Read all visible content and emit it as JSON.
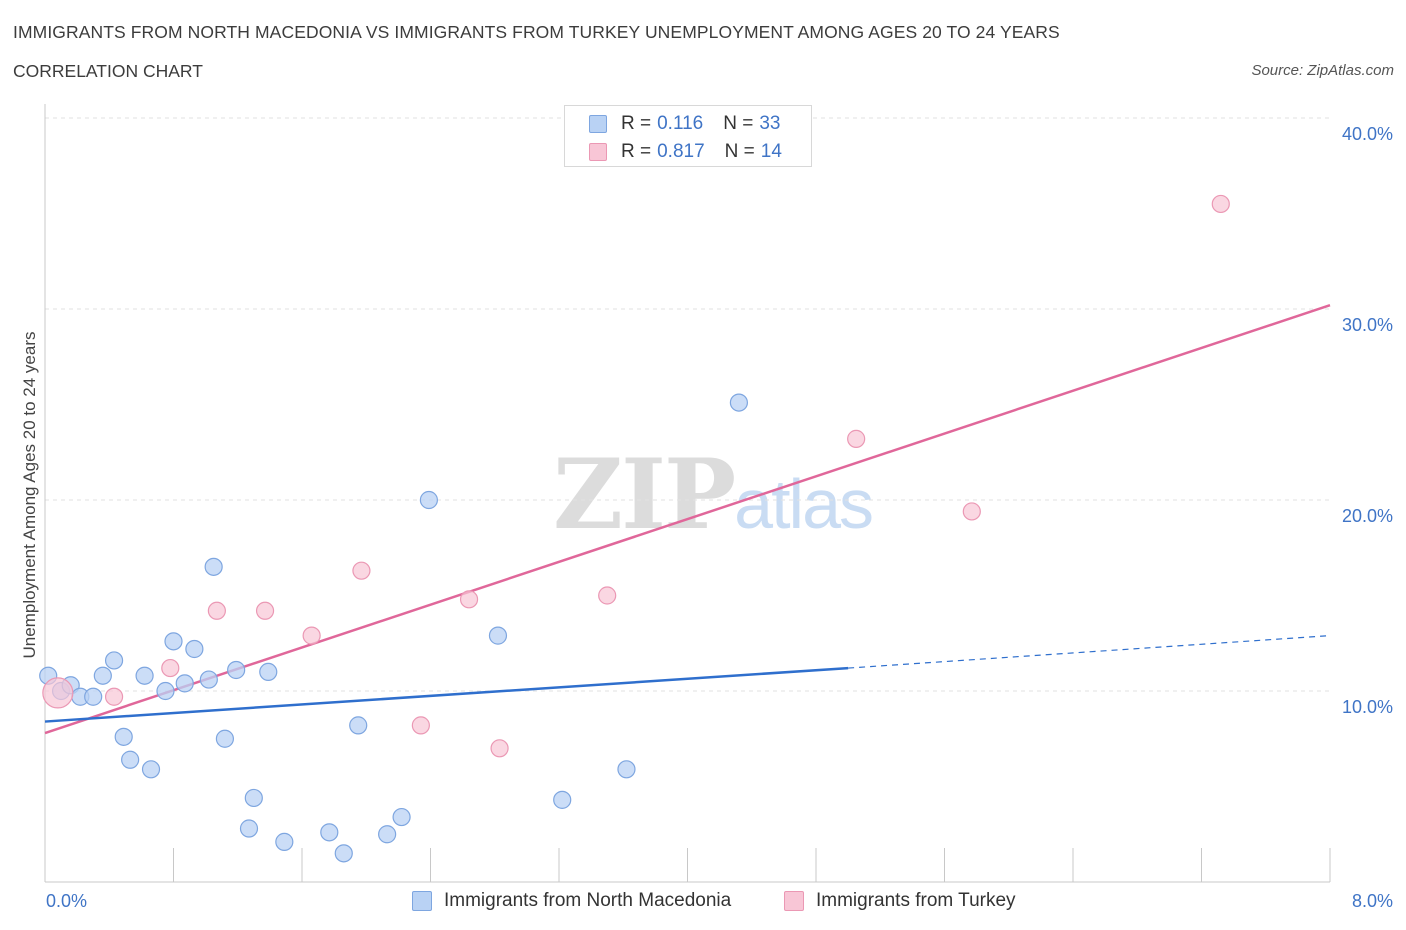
{
  "header": {
    "title": "IMMIGRANTS FROM NORTH MACEDONIA VS IMMIGRANTS FROM TURKEY UNEMPLOYMENT AMONG AGES 20 TO 24 YEARS",
    "subtitle": "CORRELATION CHART",
    "source": "Source: ZipAtlas.com"
  },
  "watermark": {
    "zip": "ZIP",
    "atlas": "atlas"
  },
  "legend": {
    "series1": {
      "r_label": "R = ",
      "r_value": "0.116",
      "n_label": "N = ",
      "n_value": "33"
    },
    "series2": {
      "r_label": "R = ",
      "r_value": "0.817",
      "n_label": "N = ",
      "n_value": "14"
    }
  },
  "colors": {
    "blue_fill": "#b9d2f4",
    "blue_stroke": "#7ea6e0",
    "blue_line": "#2f6fcd",
    "pink_fill": "#f8c6d6",
    "pink_stroke": "#eb98b4",
    "pink_line": "#e0679a",
    "grid": "#e2e2e2",
    "axis": "#c8c8c8",
    "tick_text": "#3f74c6"
  },
  "chart_data": {
    "type": "scatter",
    "title": "IMMIGRANTS FROM NORTH MACEDONIA VS IMMIGRANTS FROM TURKEY UNEMPLOYMENT AMONG AGES 20 TO 24 YEARS",
    "xlabel": "",
    "ylabel": "Unemployment Among Ages 20 to 24 years",
    "xlim": [
      0,
      8
    ],
    "ylim": [
      0,
      40
    ],
    "x_tick_labels": [
      "0.0%",
      "8.0%"
    ],
    "y_ticks": [
      10,
      20,
      30,
      40
    ],
    "y_tick_labels": [
      "10.0%",
      "20.0%",
      "30.0%",
      "40.0%"
    ],
    "grid": true,
    "legend_position": "bottom",
    "series": [
      {
        "name": "Immigrants from North Macedonia",
        "color": "blue",
        "points": [
          [
            0.02,
            10.8
          ],
          [
            0.1,
            10.0
          ],
          [
            0.16,
            10.3
          ],
          [
            0.22,
            9.7
          ],
          [
            0.3,
            9.7
          ],
          [
            0.36,
            10.8
          ],
          [
            0.43,
            11.6
          ],
          [
            0.49,
            7.6
          ],
          [
            0.53,
            6.4
          ],
          [
            0.62,
            10.8
          ],
          [
            0.66,
            5.9
          ],
          [
            0.75,
            10.0
          ],
          [
            0.8,
            12.6
          ],
          [
            0.87,
            10.4
          ],
          [
            0.93,
            12.2
          ],
          [
            1.02,
            10.6
          ],
          [
            1.05,
            16.5
          ],
          [
            1.12,
            7.5
          ],
          [
            1.19,
            11.1
          ],
          [
            1.27,
            2.8
          ],
          [
            1.3,
            4.4
          ],
          [
            1.39,
            11.0
          ],
          [
            1.49,
            2.1
          ],
          [
            1.77,
            2.6
          ],
          [
            1.86,
            1.5
          ],
          [
            1.95,
            8.2
          ],
          [
            2.13,
            2.5
          ],
          [
            2.22,
            3.4
          ],
          [
            2.39,
            20.0
          ],
          [
            2.82,
            12.9
          ],
          [
            3.22,
            4.3
          ],
          [
            3.62,
            5.9
          ],
          [
            4.32,
            25.1
          ]
        ],
        "trendline": {
          "x": [
            0,
            5.0
          ],
          "y": [
            8.4,
            11.2
          ],
          "dashed_extension": {
            "x": [
              5.0,
              8.0
            ],
            "y": [
              11.2,
              12.9
            ]
          }
        }
      },
      {
        "name": "Immigrants from Turkey",
        "color": "pink",
        "points": [
          [
            0.08,
            9.9
          ],
          [
            0.43,
            9.7
          ],
          [
            0.78,
            11.2
          ],
          [
            1.07,
            14.2
          ],
          [
            1.37,
            14.2
          ],
          [
            1.66,
            12.9
          ],
          [
            1.97,
            16.3
          ],
          [
            2.34,
            8.2
          ],
          [
            2.64,
            14.8
          ],
          [
            2.83,
            7.0
          ],
          [
            3.5,
            15.0
          ],
          [
            5.05,
            23.2
          ],
          [
            5.77,
            19.4
          ],
          [
            7.32,
            35.5
          ]
        ],
        "trendline": {
          "x": [
            0,
            8.0
          ],
          "y": [
            7.8,
            30.2
          ]
        }
      }
    ]
  }
}
